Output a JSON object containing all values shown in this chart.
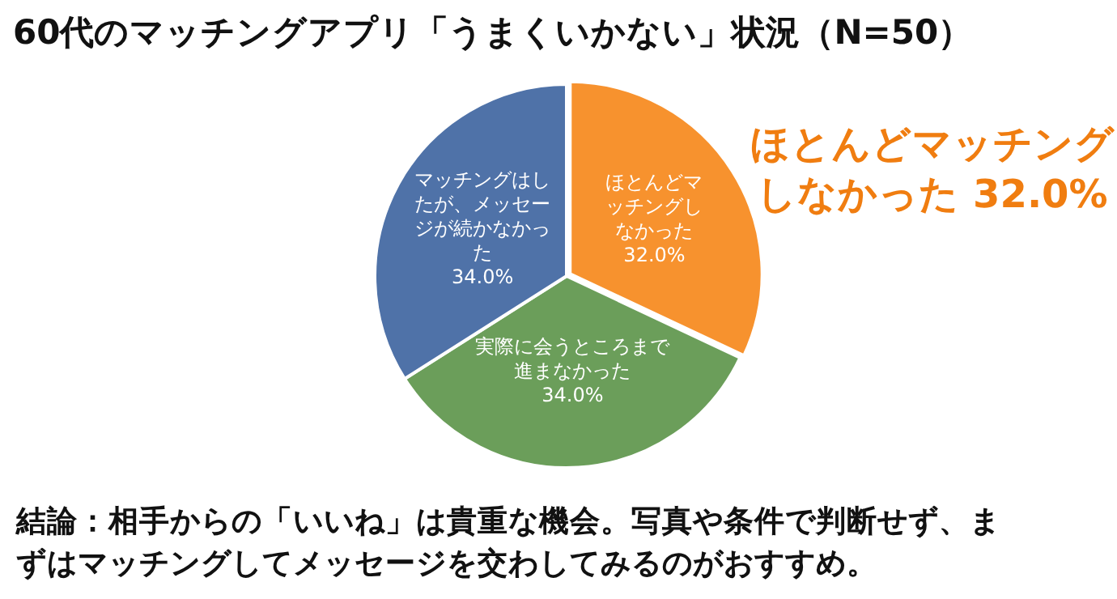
{
  "chart_data": {
    "type": "pie",
    "title": "60代のマッチングアプリ「うまくいかない」状況（N=50）",
    "categories": [
      "ほとんどマッチングしなかった",
      "実際に会うところまで進まなかった",
      "マッチングはしたが、メッセージが続かなかった"
    ],
    "values": [
      32.0,
      34.0,
      34.0
    ],
    "colors": [
      "#f7922e",
      "#6b9e5a",
      "#4f72a8"
    ],
    "value_labels": [
      "32.0%",
      "34.0%",
      "34.0%"
    ],
    "legend": false,
    "annotations": [
      "ほとんどマッチングしなかった 32.0%",
      "結論：相手からの「いいね」は貴重な機会。写真や条件で判断せず、まずはマッチングしてメッセージを交わしてみるのがおすすめ。"
    ]
  }
}
